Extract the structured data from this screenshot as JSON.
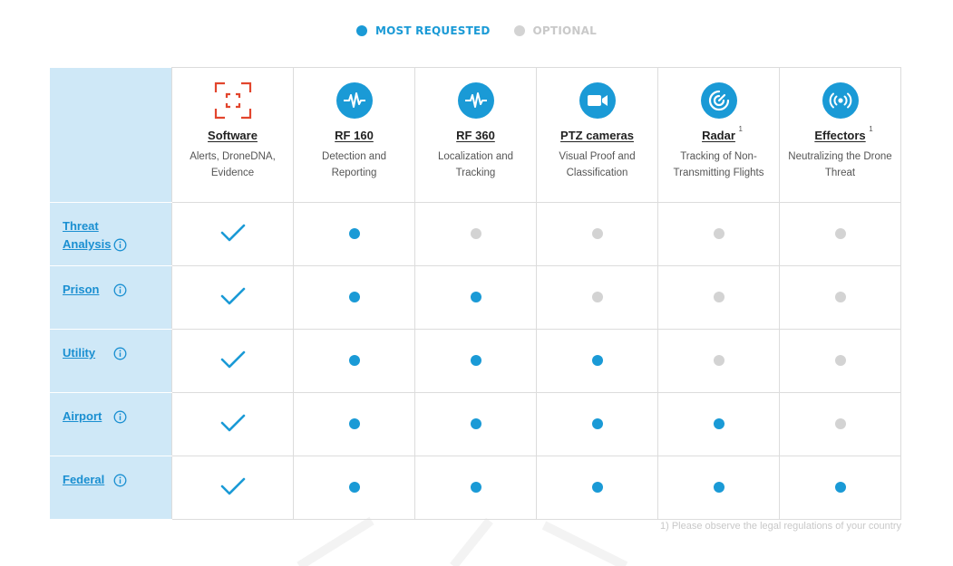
{
  "legend": {
    "most_requested": "MOST REQUESTED",
    "optional": "OPTIONAL",
    "colors": {
      "most_requested": "#1a9ad6",
      "optional": "#d3d3d3"
    }
  },
  "columns": [
    {
      "title": "Software",
      "desc": "Alerts, DroneDNA, Evidence",
      "icon": "software-scan-icon",
      "sup": ""
    },
    {
      "title": "RF 160",
      "desc": "Detection and Reporting",
      "icon": "rf-wave-icon",
      "sup": ""
    },
    {
      "title": "RF 360",
      "desc": "Localization and Tracking",
      "icon": "rf-wave-icon",
      "sup": ""
    },
    {
      "title": "PTZ cameras",
      "desc": "Visual Proof and Classification",
      "icon": "camera-icon",
      "sup": ""
    },
    {
      "title": "Radar",
      "desc": "Tracking of Non-Transmitting Flights",
      "icon": "radar-icon",
      "sup": "1"
    },
    {
      "title": "Effectors",
      "desc": "Neutralizing the Drone Threat",
      "icon": "broadcast-icon",
      "sup": "1"
    }
  ],
  "rows": [
    {
      "label": "Threat Analysis",
      "cells": [
        "check",
        "req",
        "opt",
        "opt",
        "opt",
        "opt"
      ]
    },
    {
      "label": "Prison",
      "cells": [
        "check",
        "req",
        "req",
        "opt",
        "opt",
        "opt"
      ]
    },
    {
      "label": "Utility",
      "cells": [
        "check",
        "req",
        "req",
        "req",
        "opt",
        "opt"
      ]
    },
    {
      "label": "Airport",
      "cells": [
        "check",
        "req",
        "req",
        "req",
        "req",
        "opt"
      ]
    },
    {
      "label": "Federal",
      "cells": [
        "check",
        "req",
        "req",
        "req",
        "req",
        "req"
      ]
    }
  ],
  "footnote": "1) Please observe the legal regulations of your country"
}
